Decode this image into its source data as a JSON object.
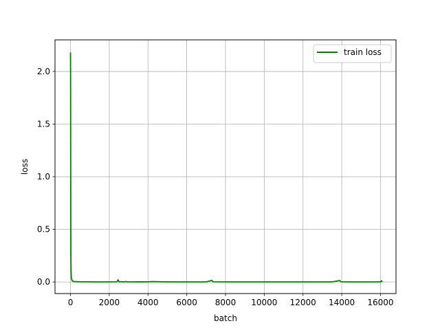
{
  "chart_data": {
    "type": "line",
    "title": "",
    "xlabel": "batch",
    "ylabel": "loss",
    "xlim": [
      -800,
      16800
    ],
    "ylim": [
      -0.11,
      2.3
    ],
    "xticks": [
      0,
      2000,
      4000,
      6000,
      8000,
      10000,
      12000,
      14000,
      16000
    ],
    "xtick_labels": [
      "0",
      "2000",
      "4000",
      "6000",
      "8000",
      "10000",
      "12000",
      "14000",
      "16000"
    ],
    "yticks": [
      0.0,
      0.5,
      1.0,
      1.5,
      2.0
    ],
    "ytick_labels": [
      "0.0",
      "0.5",
      "1.0",
      "1.5",
      "2.0"
    ],
    "grid": true,
    "legend_position": "top-right",
    "series": [
      {
        "name": "train loss",
        "color": "#008000",
        "x": [
          0,
          5,
          10,
          15,
          20,
          30,
          40,
          60,
          80,
          100,
          150,
          200,
          300,
          500,
          800,
          1200,
          1600,
          2000,
          2400,
          2450,
          2500,
          2800,
          2850,
          2900,
          3200,
          3600,
          4000,
          4200,
          5000,
          5500,
          6000,
          7000,
          7300,
          7350,
          8000,
          9000,
          10000,
          11000,
          12000,
          13000,
          13500,
          13900,
          13950,
          14500,
          15000,
          15500,
          16000,
          16050,
          16100
        ],
        "y": [
          2.18,
          1.9,
          1.2,
          0.6,
          0.25,
          0.1,
          0.05,
          0.025,
          0.015,
          0.01,
          0.006,
          0.004,
          0.003,
          0.002,
          0.002,
          0.001,
          0.001,
          0.001,
          0.002,
          0.02,
          0.003,
          0.001,
          0.006,
          0.001,
          0.001,
          0.002,
          0.001,
          0.004,
          0.001,
          0.001,
          0.001,
          0.001,
          0.015,
          0.002,
          0.001,
          0.001,
          0.001,
          0.001,
          0.001,
          0.001,
          0.001,
          0.014,
          0.002,
          0.001,
          0.001,
          0.001,
          0.001,
          0.012,
          0.002
        ]
      }
    ]
  }
}
